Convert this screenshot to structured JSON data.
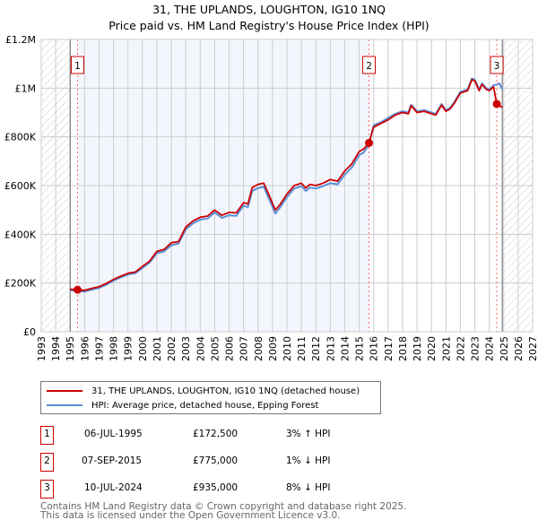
{
  "title": "31, THE UPLANDS, LOUGHTON, IG10 1NQ",
  "subtitle": "Price paid vs. HM Land Registry's House Price Index (HPI)",
  "chart_data": {
    "type": "line",
    "xlim": [
      1993,
      2027
    ],
    "ylim": [
      0,
      1200000
    ],
    "yticks": [
      {
        "v": 0,
        "label": "£0"
      },
      {
        "v": 200000,
        "label": "£200K"
      },
      {
        "v": 400000,
        "label": "£400K"
      },
      {
        "v": 600000,
        "label": "£600K"
      },
      {
        "v": 800000,
        "label": "£800K"
      },
      {
        "v": 1000000,
        "label": "£1M"
      },
      {
        "v": 1200000,
        "label": "£1.2M"
      }
    ],
    "xticks": [
      "1993",
      "1994",
      "1995",
      "1996",
      "1997",
      "1998",
      "1999",
      "2000",
      "2001",
      "2002",
      "2003",
      "2004",
      "2005",
      "2006",
      "2007",
      "2008",
      "2009",
      "2010",
      "2011",
      "2012",
      "2013",
      "2014",
      "2015",
      "2016",
      "2017",
      "2018",
      "2019",
      "2020",
      "2021",
      "2022",
      "2023",
      "2024",
      "2025",
      "2026",
      "2027"
    ],
    "series": [
      {
        "name": "31, THE UPLANDS, LOUGHTON, IG10 1NQ (detached house)",
        "color": "#cc0000",
        "x": [
          1995.0,
          1995.5,
          1996,
          1996.5,
          1997,
          1997.5,
          1998,
          1998.5,
          1999,
          1999.5,
          2000,
          2000.5,
          2001,
          2001.5,
          2002,
          2002.5,
          2003,
          2003.5,
          2004,
          2004.5,
          2005,
          2005.5,
          2006,
          2006.5,
          2007,
          2007.3,
          2007.6,
          2008,
          2008.4,
          2008.8,
          2009.2,
          2009.5,
          2010,
          2010.5,
          2011,
          2011.3,
          2011.6,
          2012,
          2012.5,
          2013,
          2013.5,
          2014,
          2014.5,
          2015,
          2015.3,
          2015.68,
          2016,
          2016.5,
          2017,
          2017.5,
          2018,
          2018.4,
          2018.6,
          2019,
          2019.5,
          2020,
          2020.3,
          2020.7,
          2021,
          2021.3,
          2021.6,
          2022,
          2022.5,
          2022.8,
          2023,
          2023.3,
          2023.5,
          2023.8,
          2024,
          2024.3,
          2024.52,
          2024.7,
          2024.9
        ],
        "y": [
          175000,
          172500,
          170000,
          178000,
          185000,
          198000,
          215000,
          228000,
          240000,
          245000,
          268000,
          290000,
          330000,
          338000,
          365000,
          370000,
          430000,
          455000,
          470000,
          475000,
          500000,
          478000,
          490000,
          488000,
          530000,
          525000,
          592000,
          605000,
          610000,
          555000,
          500000,
          520000,
          565000,
          600000,
          610000,
          590000,
          605000,
          600000,
          610000,
          625000,
          618000,
          660000,
          690000,
          740000,
          750000,
          775000,
          840000,
          855000,
          870000,
          890000,
          900000,
          895000,
          928000,
          900000,
          905000,
          895000,
          890000,
          930000,
          905000,
          915000,
          940000,
          980000,
          990000,
          1035000,
          1030000,
          990000,
          1015000,
          995000,
          990000,
          1005000,
          935000,
          930000,
          920000
        ]
      },
      {
        "name": "HPI: Average price, detached house, Epping Forest",
        "color": "#5b8fd6",
        "x": [
          1995.0,
          1995.5,
          1996,
          1996.5,
          1997,
          1997.5,
          1998,
          1998.5,
          1999,
          1999.5,
          2000,
          2000.5,
          2001,
          2001.5,
          2002,
          2002.5,
          2003,
          2003.5,
          2004,
          2004.5,
          2005,
          2005.5,
          2006,
          2006.5,
          2007,
          2007.3,
          2007.6,
          2008,
          2008.4,
          2008.8,
          2009.2,
          2009.5,
          2010,
          2010.5,
          2011,
          2011.3,
          2011.6,
          2012,
          2012.5,
          2013,
          2013.5,
          2014,
          2014.5,
          2015,
          2015.3,
          2015.68,
          2016,
          2016.5,
          2017,
          2017.5,
          2018,
          2018.4,
          2018.6,
          2019,
          2019.5,
          2020,
          2020.3,
          2020.7,
          2021,
          2021.3,
          2021.6,
          2022,
          2022.5,
          2022.8,
          2023,
          2023.3,
          2023.5,
          2023.8,
          2024,
          2024.3,
          2024.52,
          2024.7,
          2024.9
        ],
        "y": [
          170000,
          167000,
          165000,
          173000,
          180000,
          193000,
          210000,
          223000,
          235000,
          240000,
          262000,
          284000,
          322000,
          330000,
          355000,
          362000,
          420000,
          445000,
          460000,
          465000,
          490000,
          468000,
          478000,
          476000,
          518000,
          512000,
          578000,
          590000,
          595000,
          540000,
          485000,
          508000,
          552000,
          588000,
          598000,
          578000,
          592000,
          588000,
          598000,
          610000,
          605000,
          645000,
          675000,
          725000,
          735000,
          768000,
          848000,
          860000,
          878000,
          895000,
          905000,
          900000,
          932000,
          905000,
          910000,
          900000,
          895000,
          935000,
          910000,
          920000,
          945000,
          985000,
          995000,
          1040000,
          1035000,
          995000,
          1020000,
          1000000,
          995000,
          1012000,
          1015000,
          1020000,
          995000
        ]
      }
    ],
    "sales": [
      {
        "id": "1",
        "x": 1995.51,
        "y": 172500
      },
      {
        "id": "2",
        "x": 2015.68,
        "y": 775000
      },
      {
        "id": "3",
        "x": 2024.52,
        "y": 935000
      }
    ]
  },
  "legend": [
    {
      "label": "31, THE UPLANDS, LOUGHTON, IG10 1NQ (detached house)",
      "color": "#cc0000"
    },
    {
      "label": "HPI: Average price, detached house, Epping Forest",
      "color": "#5b8fd6"
    }
  ],
  "transactions": [
    {
      "num": "1",
      "date": "06-JUL-1995",
      "price": "£172,500",
      "hpi": "3% ↑ HPI"
    },
    {
      "num": "2",
      "date": "07-SEP-2015",
      "price": "£775,000",
      "hpi": "1% ↓ HPI"
    },
    {
      "num": "3",
      "date": "10-JUL-2024",
      "price": "£935,000",
      "hpi": "8% ↓ HPI"
    }
  ],
  "footer": {
    "line1": "Contains HM Land Registry data © Crown copyright and database right 2025.",
    "line2": "This data is licensed under the Open Government Licence v3.0."
  }
}
